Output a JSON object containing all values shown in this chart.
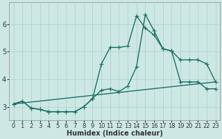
{
  "xlabel": "Humidex (Indice chaleur)",
  "xlim": [
    -0.5,
    23.5
  ],
  "ylim": [
    2.5,
    6.8
  ],
  "yticks": [
    3,
    4,
    5,
    6
  ],
  "xticks": [
    0,
    1,
    2,
    3,
    4,
    5,
    6,
    7,
    8,
    9,
    10,
    11,
    12,
    13,
    14,
    15,
    16,
    17,
    18,
    19,
    20,
    21,
    22,
    23
  ],
  "bg_color": "#cde8e4",
  "line_color": "#1a6e64",
  "grid_color": "#aacec8",
  "line1_x": [
    0,
    1,
    2,
    3,
    4,
    5,
    6,
    7,
    8,
    9,
    10,
    11,
    12,
    13,
    14,
    15,
    16,
    17,
    18,
    19,
    20,
    21,
    22,
    23
  ],
  "line1_y": [
    3.1,
    3.2,
    2.95,
    2.9,
    2.82,
    2.82,
    2.82,
    2.82,
    3.0,
    3.3,
    4.55,
    5.15,
    5.15,
    5.2,
    6.3,
    5.85,
    5.6,
    5.1,
    5.02,
    3.9,
    3.9,
    3.9,
    3.65,
    3.65
  ],
  "line2_x": [
    0,
    1,
    2,
    3,
    4,
    5,
    6,
    7,
    8,
    9,
    10,
    11,
    12,
    13,
    14,
    15,
    16,
    17,
    18,
    19,
    20,
    21,
    22,
    23
  ],
  "line2_y": [
    3.1,
    3.2,
    2.95,
    2.9,
    2.82,
    2.82,
    2.82,
    2.82,
    3.0,
    3.3,
    3.6,
    3.65,
    3.55,
    3.75,
    4.45,
    6.35,
    5.75,
    5.1,
    5.02,
    4.7,
    4.7,
    4.7,
    4.55,
    3.9
  ],
  "line3_x": [
    0,
    23
  ],
  "line3_y": [
    3.1,
    3.9
  ],
  "marker_size": 2.5,
  "linewidth": 1.0,
  "font_size_label": 7,
  "font_size_tick": 6
}
